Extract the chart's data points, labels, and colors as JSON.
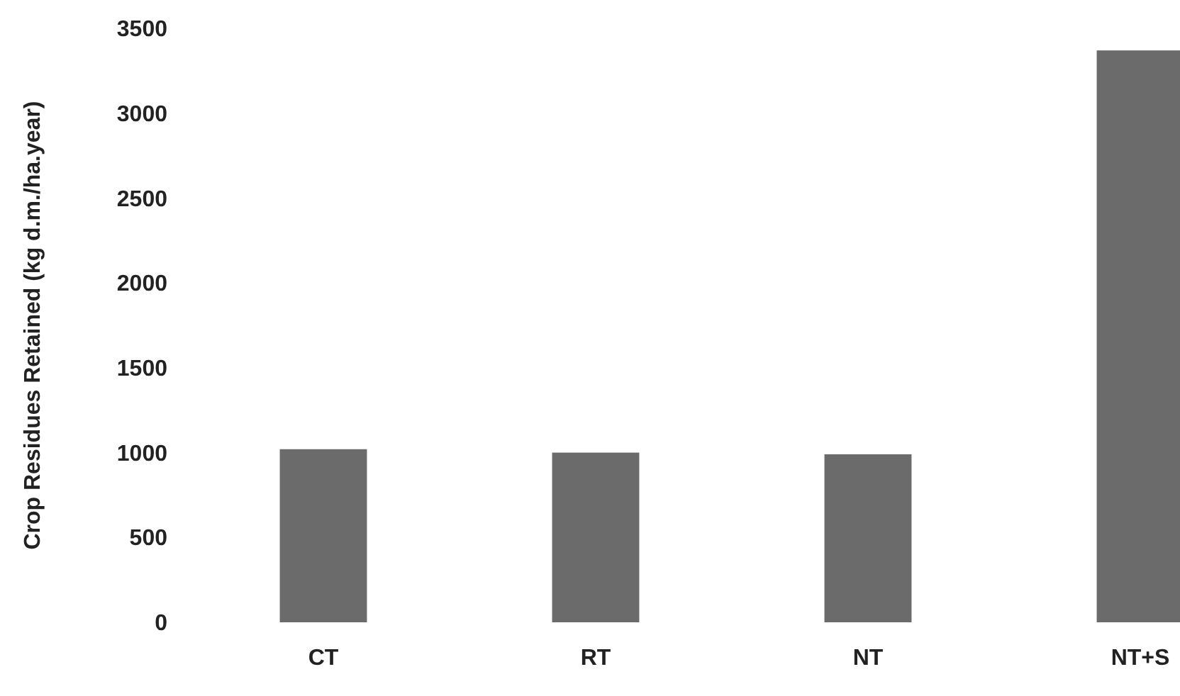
{
  "chart_data": {
    "type": "bar",
    "ylabel": "Crop Residues Retained (kg d.m./ha.year)",
    "categories": [
      "CT",
      "RT",
      "NT",
      "NT+S"
    ],
    "values": [
      1020,
      1000,
      990,
      3370
    ],
    "color": "#6b6b6b",
    "ylim": [
      0,
      3500
    ],
    "yticks": [
      0,
      500,
      1000,
      1500,
      2000,
      2500,
      3000,
      3500
    ],
    "grid": false
  }
}
